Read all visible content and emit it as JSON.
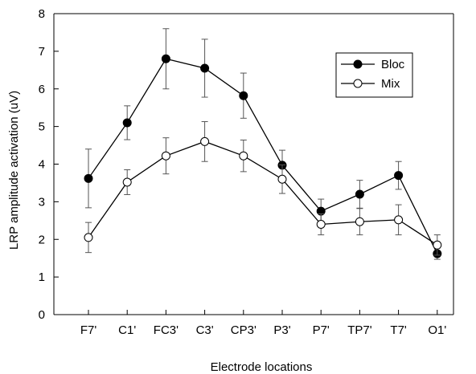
{
  "chart_data": {
    "type": "line",
    "title": "",
    "xlabel": "Electrode locations",
    "ylabel": "LRP amplitude activation (uV)",
    "ylim": [
      0,
      8
    ],
    "yticks": [
      "0",
      "1",
      "2",
      "3",
      "4",
      "5",
      "6",
      "7",
      "8"
    ],
    "categories": [
      "F7'",
      "C1'",
      "FC3'",
      "C3'",
      "CP3'",
      "P3'",
      "P7'",
      "TP7'",
      "T7'",
      "O1'"
    ],
    "grid": false,
    "legend_position": "top-right",
    "series": [
      {
        "name": "Bloc",
        "marker": "filled-circle",
        "color": "#000000",
        "values": [
          3.62,
          5.1,
          6.8,
          6.55,
          5.82,
          3.97,
          2.75,
          3.2,
          3.7,
          1.62
        ],
        "error": [
          0.78,
          0.45,
          0.8,
          0.77,
          0.6,
          0.4,
          0.32,
          0.37,
          0.37,
          0.15
        ]
      },
      {
        "name": "Mix",
        "marker": "open-circle",
        "color": "#000000",
        "values": [
          2.05,
          3.52,
          4.22,
          4.6,
          4.22,
          3.6,
          2.4,
          2.47,
          2.52,
          1.85
        ],
        "error": [
          0.4,
          0.33,
          0.48,
          0.53,
          0.42,
          0.38,
          0.28,
          0.35,
          0.4,
          0.27
        ]
      }
    ]
  }
}
